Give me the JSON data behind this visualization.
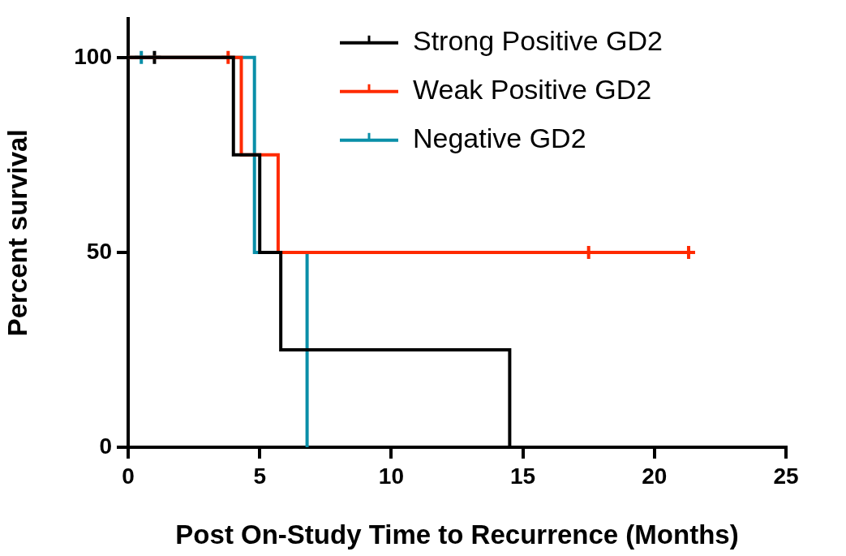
{
  "chart_data": {
    "type": "step",
    "xlabel": "Post On-Study Time to Recurrence (Months)",
    "ylabel": "Percent survival",
    "xlim": [
      0,
      25
    ],
    "xticks": [
      0,
      5,
      10,
      15,
      20,
      25
    ],
    "ylim": [
      0,
      110
    ],
    "yticks": [
      0,
      50,
      100
    ],
    "grid": false,
    "legend": "top right",
    "series": [
      {
        "name": "Strong Positive GD2",
        "color": "#000000",
        "x": [
          0,
          4,
          5,
          5.8,
          14.5
        ],
        "values": [
          100,
          75,
          50,
          25,
          0
        ]
      },
      {
        "name": "Weak Positive GD2",
        "color": "#ff2a00",
        "x": [
          0,
          4.3,
          5.7,
          21.3
        ],
        "values": [
          100,
          75,
          50,
          50
        ]
      },
      {
        "name": "Negative GD2",
        "color": "#0a8fa8",
        "x": [
          0,
          4.8,
          6.8
        ],
        "values": [
          100,
          50,
          0
        ]
      },
      {
        "type": "scatter",
        "marker": "cross",
        "color": "#000000",
        "x": [
          1
        ],
        "values": [
          100
        ]
      },
      {
        "type": "scatter",
        "marker": "cross",
        "color": "#ff2a00",
        "x": [
          3.8,
          17.5,
          21.3
        ],
        "values": [
          100,
          50,
          50
        ]
      },
      {
        "type": "scatter",
        "marker": "cross",
        "color": "#0a8fa8",
        "x": [
          0.5
        ],
        "values": [
          100
        ]
      }
    ]
  }
}
